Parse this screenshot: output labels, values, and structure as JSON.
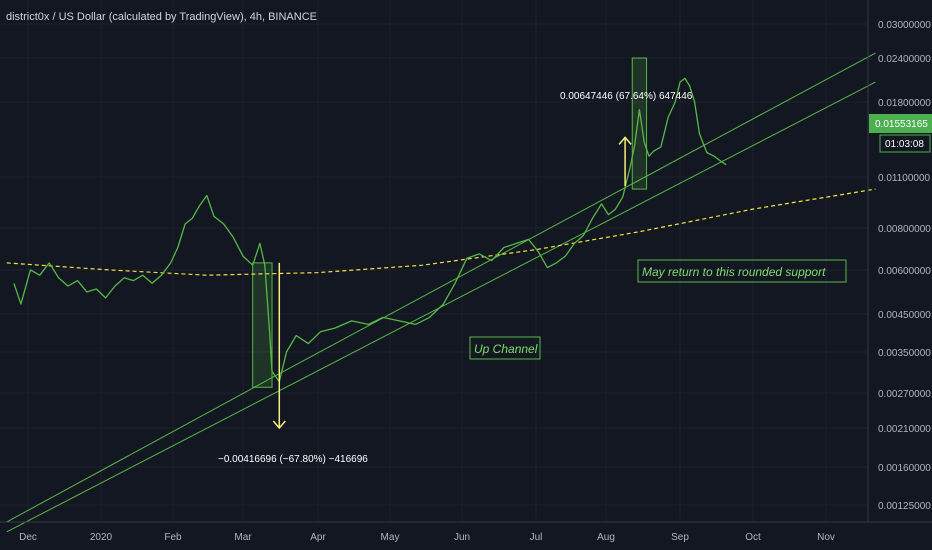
{
  "chart_data": {
    "type": "line",
    "title": "district0x / US Dollar (calculated by TradingView), 4h, BINANCE",
    "x_ticks": [
      "Dec",
      "2020",
      "Feb",
      "Mar",
      "Apr",
      "May",
      "Jun",
      "Jul",
      "Aug",
      "Sep",
      "Oct",
      "Nov"
    ],
    "y_ticks": [
      "0.03000000",
      "0.02400000",
      "0.01800000",
      "0.01100000",
      "0.00800000",
      "0.00600000",
      "0.00450000",
      "0.00350000",
      "0.00270000",
      "0.00210000",
      "0.00160000",
      "0.00125000"
    ],
    "y_scale": "log",
    "grid": true,
    "series": [
      {
        "color": "#57b846",
        "points": [
          [
            "2019-11-25",
            0.0055
          ],
          [
            "2019-11-28",
            0.0048
          ],
          [
            "2019-12-02",
            0.006
          ],
          [
            "2019-12-06",
            0.0058
          ],
          [
            "2019-12-10",
            0.0063
          ],
          [
            "2019-12-14",
            0.0057
          ],
          [
            "2019-12-18",
            0.0054
          ],
          [
            "2019-12-22",
            0.0056
          ],
          [
            "2019-12-26",
            0.0052
          ],
          [
            "2019-12-30",
            0.0053
          ],
          [
            "2020-01-03",
            0.005
          ],
          [
            "2020-01-07",
            0.0054
          ],
          [
            "2020-01-11",
            0.0057
          ],
          [
            "2020-01-15",
            0.0056
          ],
          [
            "2020-01-19",
            0.0058
          ],
          [
            "2020-01-23",
            0.0055
          ],
          [
            "2020-01-27",
            0.0058
          ],
          [
            "2020-01-31",
            0.0063
          ],
          [
            "2020-02-03",
            0.007
          ],
          [
            "2020-02-06",
            0.0082
          ],
          [
            "2020-02-09",
            0.0085
          ],
          [
            "2020-02-12",
            0.0092
          ],
          [
            "2020-02-15",
            0.0098
          ],
          [
            "2020-02-18",
            0.0086
          ],
          [
            "2020-02-22",
            0.0082
          ],
          [
            "2020-02-26",
            0.0075
          ],
          [
            "2020-03-01",
            0.0066
          ],
          [
            "2020-03-05",
            0.0062
          ],
          [
            "2020-03-08",
            0.0072
          ],
          [
            "2020-03-10",
            0.0062
          ],
          [
            "2020-03-12",
            0.004
          ],
          [
            "2020-03-13",
            0.0031
          ],
          [
            "2020-03-16",
            0.0029
          ],
          [
            "2020-03-19",
            0.0035
          ],
          [
            "2020-03-23",
            0.0039
          ],
          [
            "2020-03-28",
            0.0037
          ],
          [
            "2020-04-02",
            0.004
          ],
          [
            "2020-04-08",
            0.0041
          ],
          [
            "2020-04-15",
            0.0043
          ],
          [
            "2020-04-22",
            0.0042
          ],
          [
            "2020-04-28",
            0.0044
          ],
          [
            "2020-05-05",
            0.0043
          ],
          [
            "2020-05-12",
            0.0042
          ],
          [
            "2020-05-18",
            0.0044
          ],
          [
            "2020-05-24",
            0.0048
          ],
          [
            "2020-05-29",
            0.0055
          ],
          [
            "2020-06-03",
            0.0065
          ],
          [
            "2020-06-08",
            0.0067
          ],
          [
            "2020-06-13",
            0.0064
          ],
          [
            "2020-06-18",
            0.007
          ],
          [
            "2020-06-23",
            0.0072
          ],
          [
            "2020-06-28",
            0.0074
          ],
          [
            "2020-07-02",
            0.0068
          ],
          [
            "2020-07-06",
            0.0061
          ],
          [
            "2020-07-10",
            0.0063
          ],
          [
            "2020-07-14",
            0.0066
          ],
          [
            "2020-07-18",
            0.0072
          ],
          [
            "2020-07-22",
            0.0076
          ],
          [
            "2020-07-26",
            0.0085
          ],
          [
            "2020-07-30",
            0.0093
          ],
          [
            "2020-08-02",
            0.0087
          ],
          [
            "2020-08-05",
            0.009
          ],
          [
            "2020-08-08",
            0.0097
          ],
          [
            "2020-08-11",
            0.012
          ],
          [
            "2020-08-13",
            0.015
          ],
          [
            "2020-08-15",
            0.0175
          ],
          [
            "2020-08-17",
            0.0155
          ],
          [
            "2020-08-19",
            0.0135
          ],
          [
            "2020-08-21",
            0.0142
          ],
          [
            "2020-08-24",
            0.0148
          ],
          [
            "2020-08-27",
            0.017
          ],
          [
            "2020-08-30",
            0.018
          ],
          [
            "2020-09-01",
            0.0205
          ],
          [
            "2020-09-03",
            0.021
          ],
          [
            "2020-09-05",
            0.02
          ],
          [
            "2020-09-07",
            0.018
          ],
          [
            "2020-09-09",
            0.016
          ],
          [
            "2020-09-12",
            0.014
          ],
          [
            "2020-09-15",
            0.0135
          ],
          [
            "2020-09-18",
            0.0128
          ],
          [
            "2020-09-20",
            0.0124
          ]
        ]
      }
    ],
    "trendlines": [
      {
        "name": "channel-lower",
        "color": "#57b846",
        "from": [
          "2019-11-22",
          0.00105
        ],
        "to": [
          "2020-11-22",
          0.0205
        ]
      },
      {
        "name": "channel-upper",
        "color": "#57b846",
        "from": [
          "2020-03-14",
          0.003
        ],
        "to": [
          "2020-11-22",
          0.0248
        ]
      },
      {
        "name": "channel-outer",
        "color": "#57b846",
        "from": [
          "2019-11-22",
          0.00112
        ],
        "to": [
          "2020-03-14",
          0.003
        ]
      },
      {
        "name": "rounded-support",
        "color": "#f0e442",
        "dashed": true,
        "points": [
          [
            "2019-11-22",
            0.0063
          ],
          [
            "2020-01-05",
            0.006
          ],
          [
            "2020-02-15",
            0.0058
          ],
          [
            "2020-04-01",
            0.0059
          ],
          [
            "2020-05-15",
            0.0062
          ],
          [
            "2020-07-01",
            0.0069
          ],
          [
            "2020-08-15",
            0.0078
          ],
          [
            "2020-10-01",
            0.009
          ],
          [
            "2020-11-22",
            0.0102
          ]
        ]
      }
    ],
    "boxes": [
      {
        "from": [
          "2020-03-05",
          0.0063
        ],
        "to": [
          "2020-03-13",
          0.0028
        ]
      },
      {
        "from": [
          "2020-08-12",
          0.024
        ],
        "to": [
          "2020-08-18",
          0.0102
        ]
      }
    ],
    "annotations": [
      {
        "text": "−0.00416696 (−67.80%) −416696",
        "at": [
          "2020-03-16",
          0.00185
        ],
        "arrow": {
          "from": [
            "2020-03-16",
            0.0063
          ],
          "to": [
            "2020-03-16",
            0.0021
          ]
        }
      },
      {
        "text": "0.00647446 (67.64%) 647446",
        "at": [
          "2020-07-18",
          0.0187
        ],
        "arrow": {
          "from": [
            "2020-08-09",
            0.0104
          ],
          "to": [
            "2020-08-09",
            0.0158
          ]
        }
      }
    ],
    "labels": {
      "up_channel": "Up Channel",
      "support_note": "May return to this rounded support"
    },
    "last_price": "0.01553165",
    "countdown": "01:03:08"
  }
}
